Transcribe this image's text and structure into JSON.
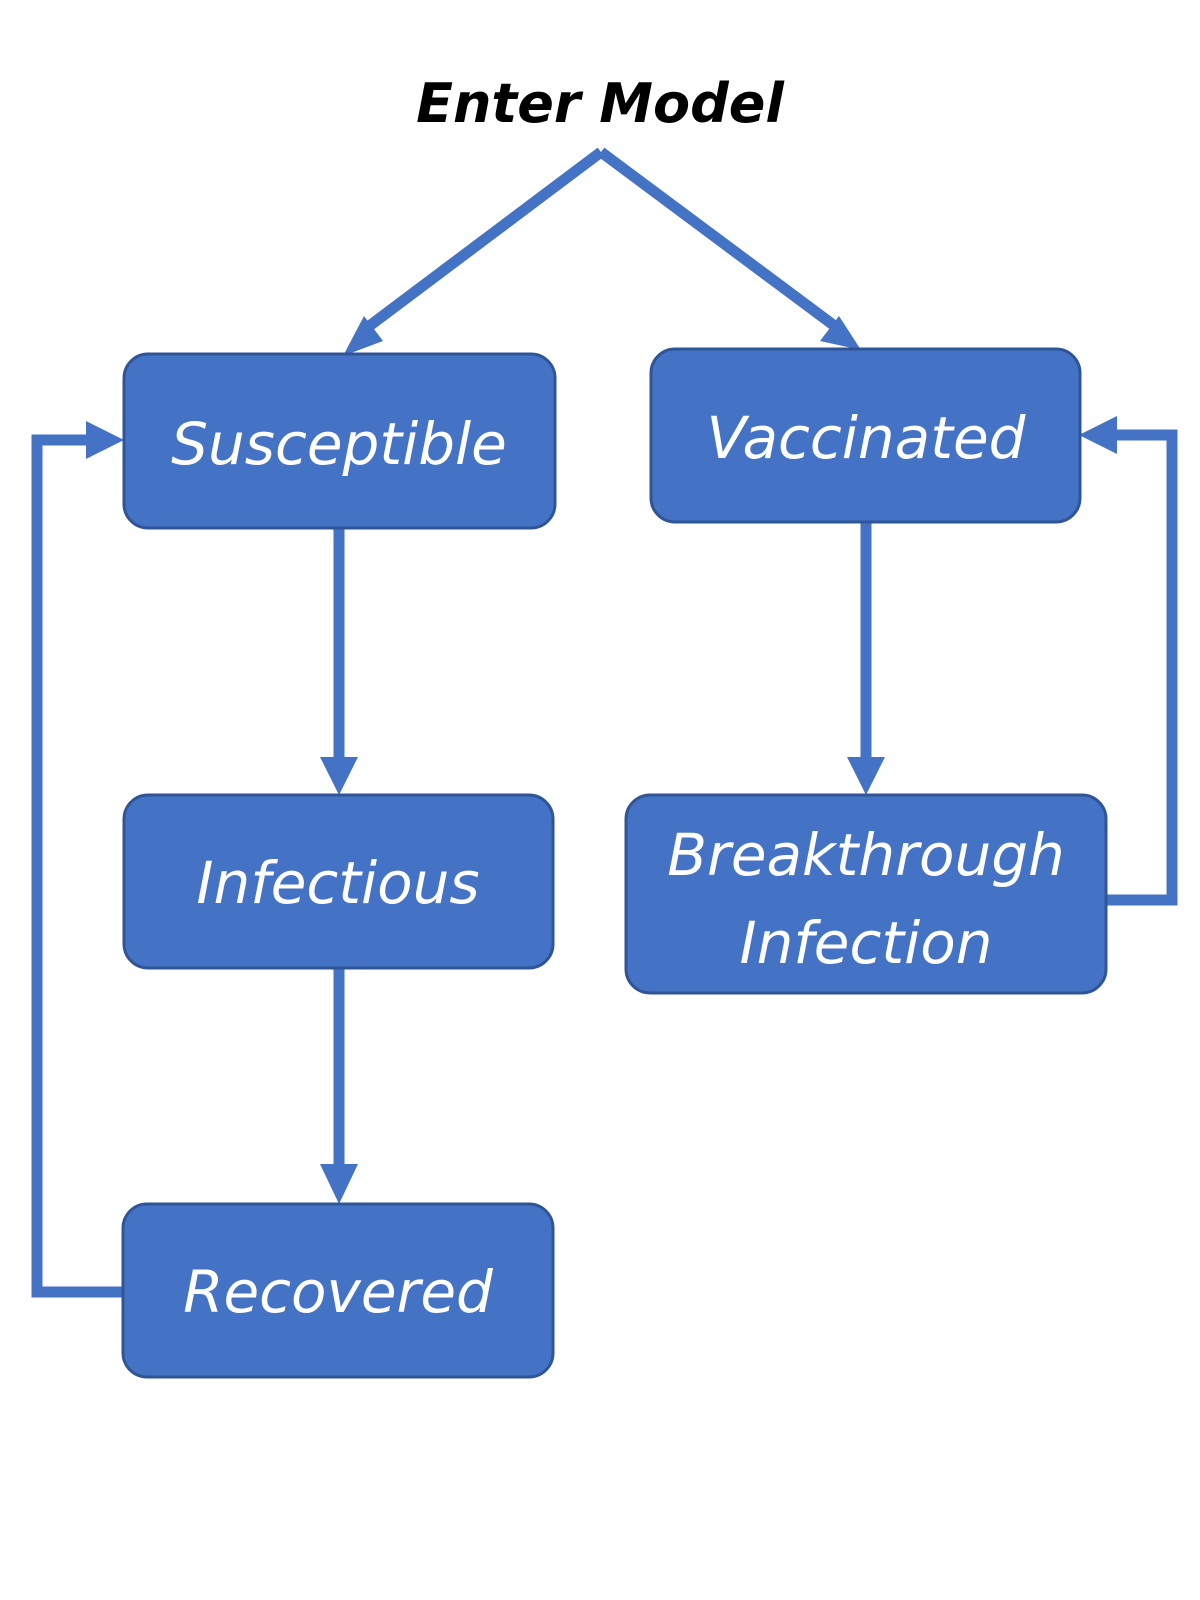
{
  "title": "Enter Model",
  "nodes": {
    "susceptible": "Susceptible",
    "vaccinated": "Vaccinated",
    "infectious": "Infectious",
    "breakthrough_line1": "Breakthrough",
    "breakthrough_line2": "Infection",
    "recovered": "Recovered"
  },
  "colors": {
    "box_fill": "#4472c4",
    "box_border": "#2f5597",
    "arrow": "#4472c4",
    "box_text": "#ffffff",
    "title_text": "#000000"
  }
}
